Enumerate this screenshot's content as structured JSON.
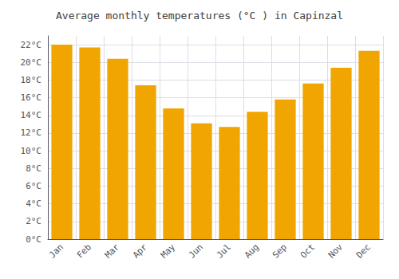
{
  "chart_data": {
    "type": "bar",
    "title": "Average monthly temperatures (°C ) in Capinzal",
    "categories": [
      "Jan",
      "Feb",
      "Mar",
      "Apr",
      "May",
      "Jun",
      "Jul",
      "Aug",
      "Sep",
      "Oct",
      "Nov",
      "Dec"
    ],
    "values": [
      22.0,
      21.7,
      20.4,
      17.4,
      14.8,
      13.1,
      12.7,
      14.4,
      15.8,
      17.6,
      19.4,
      21.3
    ],
    "color": "#F0A500",
    "ylim": [
      0,
      23
    ],
    "yticks": [
      {
        "value": 0,
        "label": "0°C"
      },
      {
        "value": 2,
        "label": "2°C"
      },
      {
        "value": 4,
        "label": "4°C"
      },
      {
        "value": 6,
        "label": "6°C"
      },
      {
        "value": 8,
        "label": "8°C"
      },
      {
        "value": 10,
        "label": "10°C"
      },
      {
        "value": 12,
        "label": "12°C"
      },
      {
        "value": 14,
        "label": "14°C"
      },
      {
        "value": 16,
        "label": "16°C"
      },
      {
        "value": 18,
        "label": "18°C"
      },
      {
        "value": 20,
        "label": "20°C"
      },
      {
        "value": 22,
        "label": "22°C"
      }
    ],
    "grid": true
  }
}
